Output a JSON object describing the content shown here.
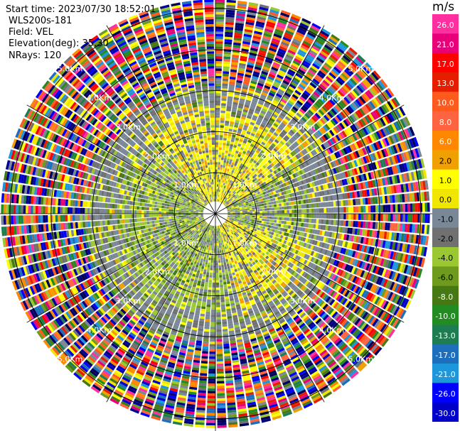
{
  "meta": {
    "start_time": "Start time: 2023/07/30 18:52:01",
    "instrument": "WLS200s-181",
    "field": "Field: VEL",
    "elevation": "Elevation(deg): 35.30",
    "nrays": "NRays: 120"
  },
  "colorbar": {
    "unit": "m/s",
    "ticks": [
      "26.0",
      "21.0",
      "17.0",
      "13.0",
      "10.0",
      "8.0",
      "6.0",
      "2.0",
      "1.0",
      "0.0",
      "-1.0",
      "-2.0",
      "-4.0",
      "-6.0",
      "-8.0",
      "-10.0",
      "-13.0",
      "-17.0",
      "-21.0",
      "-26.0",
      "-30.0"
    ],
    "colors": [
      "#ffffff",
      "#ff2fa0",
      "#e8007a",
      "#ff0000",
      "#e61e00",
      "#ff5a1e",
      "#ff6440",
      "#ff8800",
      "#f0a000",
      "#ffff00",
      "#f0e600",
      "#7a8796",
      "#707070",
      "#9bc832",
      "#6e9b1e",
      "#467814",
      "#228b22",
      "#1e7d50",
      "#1e6ebe",
      "#1e96dc",
      "#0000ff",
      "#0000c8",
      "#000096",
      "#000078",
      "#00005a"
    ]
  },
  "range_rings": [
    {
      "label": "1.0Km"
    },
    {
      "label": "2.0Km"
    },
    {
      "label": "3.0Km"
    },
    {
      "label": "4.0Km"
    },
    {
      "label": "5.0Km"
    }
  ],
  "chart_data": {
    "type": "ppi",
    "field": "VEL",
    "units": "m/s",
    "range_unit": "Km",
    "rays": 120,
    "range_rings_km": [
      1,
      2,
      3,
      4,
      5
    ],
    "near_range_pattern": "yellow (about 1 to 6 m/s) to the north and southeast; green (about -1 to -6 m/s) to the west and southwest; gray (about -1 to 1 m/s) elsewhere",
    "far_range_pattern": "noisy random colors beyond about 3 Km"
  }
}
